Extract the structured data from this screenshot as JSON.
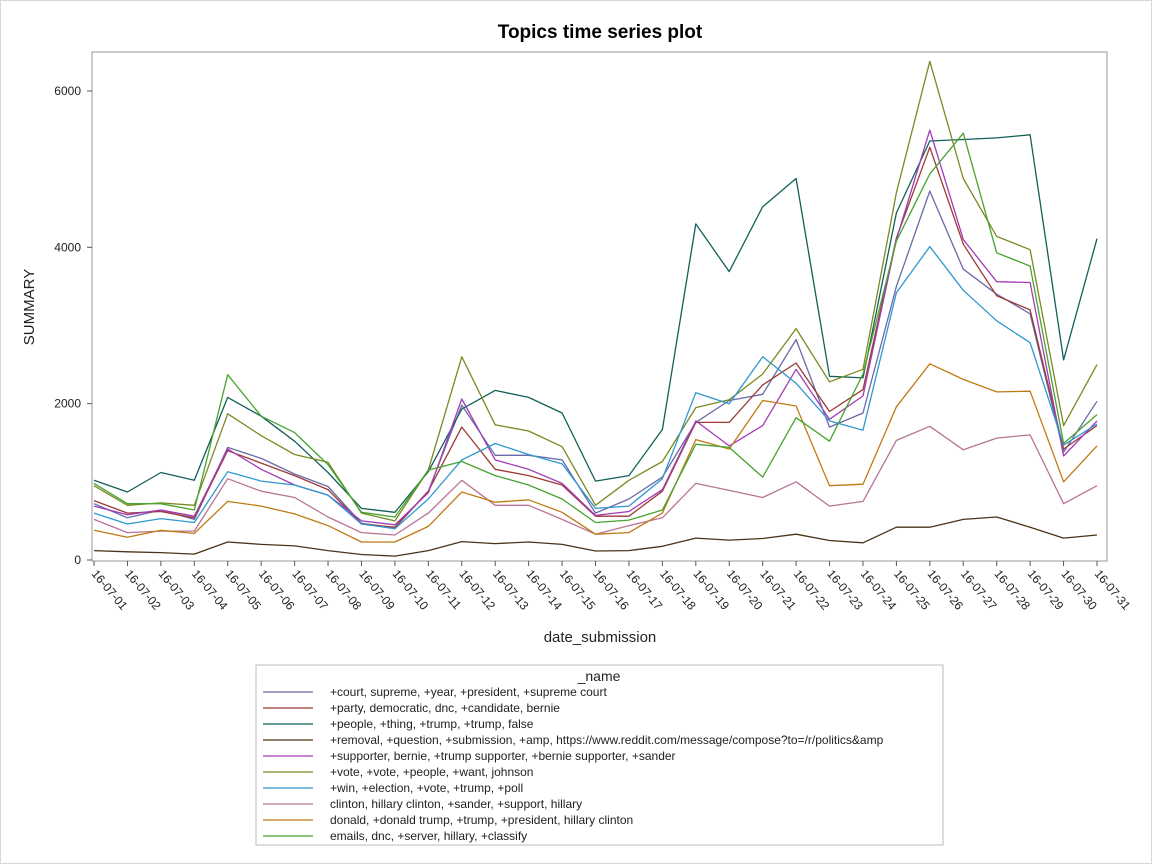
{
  "chart_data": {
    "type": "line",
    "title": "Topics time series plot",
    "xlabel": "date_submission",
    "ylabel": "SUMMARY",
    "ylim": [
      0,
      6500
    ],
    "yticks": [
      0,
      2000,
      4000,
      6000
    ],
    "grid": false,
    "legend_title": "_name",
    "legend_position": "bottom",
    "categories": [
      "16-07-01",
      "16-07-02",
      "16-07-03",
      "16-07-04",
      "16-07-05",
      "16-07-06",
      "16-07-07",
      "16-07-08",
      "16-07-09",
      "16-07-10",
      "16-07-11",
      "16-07-12",
      "16-07-13",
      "16-07-14",
      "16-07-15",
      "16-07-16",
      "16-07-17",
      "16-07-18",
      "16-07-19",
      "16-07-20",
      "16-07-21",
      "16-07-22",
      "16-07-23",
      "16-07-24",
      "16-07-25",
      "16-07-26",
      "16-07-27",
      "16-07-28",
      "16-07-29",
      "16-07-30",
      "16-07-31"
    ],
    "series": [
      {
        "name": "+court, supreme, +year, +president, +supreme court",
        "color": "#6a6aa8",
        "values": [
          720,
          540,
          640,
          520,
          1440,
          1300,
          1100,
          940,
          470,
          410,
          880,
          1980,
          1340,
          1340,
          1280,
          600,
          780,
          1060,
          1760,
          2040,
          2120,
          2820,
          1700,
          1880,
          3500,
          4720,
          3720,
          3400,
          3150,
          1380,
          2030
        ]
      },
      {
        "name": "+party, democratic, dnc, +candidate, bernie",
        "color": "#9c3a34",
        "values": [
          760,
          600,
          620,
          540,
          1400,
          1240,
          1080,
          900,
          460,
          420,
          880,
          1700,
          1160,
          1080,
          960,
          560,
          560,
          880,
          1760,
          1760,
          2240,
          2520,
          1900,
          2180,
          4120,
          5280,
          4040,
          3380,
          3200,
          1420,
          1720
        ]
      },
      {
        "name": "+people, +thing, +trump, +trump, false",
        "color": "#12605a",
        "values": [
          1020,
          870,
          1120,
          1020,
          2080,
          1840,
          1520,
          1120,
          660,
          610,
          1130,
          1930,
          2170,
          2080,
          1880,
          1010,
          1080,
          1670,
          4300,
          3690,
          4520,
          4880,
          2350,
          2330,
          4440,
          5360,
          5380,
          5400,
          5440,
          2560,
          4110
        ]
      },
      {
        "name": "+removal, +question, +submission, +amp, https://www.reddit.com/message/compose?to=/r/politics&amp",
        "color": "#4a3318",
        "values": [
          120,
          105,
          95,
          75,
          230,
          200,
          180,
          120,
          70,
          50,
          120,
          235,
          210,
          230,
          200,
          115,
          120,
          175,
          280,
          255,
          275,
          330,
          250,
          220,
          420,
          420,
          520,
          550,
          420,
          280,
          320
        ]
      },
      {
        "name": "+supporter, bernie, +trump supporter, +bernie supporter, +sander",
        "color": "#a23cb6",
        "values": [
          690,
          580,
          640,
          560,
          1420,
          1160,
          960,
          830,
          500,
          450,
          860,
          2060,
          1280,
          1160,
          980,
          570,
          620,
          900,
          1780,
          1460,
          1720,
          2440,
          1800,
          2100,
          4100,
          5500,
          4100,
          3560,
          3550,
          1330,
          1780
        ]
      },
      {
        "name": "+vote, +vote, +people, +want, johnson",
        "color": "#7a8a22",
        "values": [
          950,
          700,
          730,
          700,
          1870,
          1590,
          1350,
          1250,
          600,
          500,
          1150,
          2600,
          1730,
          1650,
          1450,
          700,
          1020,
          1260,
          1950,
          2050,
          2380,
          2960,
          2280,
          2440,
          4700,
          6380,
          4880,
          4140,
          3970,
          1720,
          2500
        ]
      },
      {
        "name": "+win, +election, +vote, +trump, +poll",
        "color": "#2f98cf",
        "values": [
          600,
          460,
          530,
          480,
          1130,
          1010,
          960,
          830,
          460,
          400,
          780,
          1280,
          1490,
          1350,
          1230,
          660,
          690,
          1040,
          2140,
          2000,
          2600,
          2260,
          1780,
          1660,
          3420,
          4010,
          3450,
          3060,
          2780,
          1470,
          1740
        ]
      },
      {
        "name": "clinton, hillary clinton, +sander, +support, hillary",
        "color": "#b87497",
        "values": [
          520,
          350,
          370,
          370,
          1040,
          880,
          800,
          550,
          350,
          320,
          600,
          1020,
          700,
          700,
          520,
          330,
          440,
          540,
          980,
          890,
          800,
          1000,
          690,
          750,
          1530,
          1710,
          1410,
          1560,
          1600,
          720,
          950
        ]
      },
      {
        "name": "donald, +donald trump, +trump, +president, hillary clinton",
        "color": "#c07a14",
        "values": [
          380,
          290,
          380,
          340,
          750,
          690,
          590,
          440,
          230,
          230,
          430,
          870,
          740,
          770,
          610,
          330,
          350,
          600,
          1540,
          1420,
          2040,
          1970,
          950,
          970,
          1960,
          2510,
          2310,
          2150,
          2160,
          1000,
          1460
        ]
      },
      {
        "name": "emails, dnc, +server, hillary, +classify",
        "color": "#47a42e",
        "values": [
          980,
          720,
          720,
          640,
          2370,
          1840,
          1630,
          1220,
          610,
          550,
          1150,
          1260,
          1080,
          960,
          780,
          480,
          510,
          640,
          1480,
          1440,
          1060,
          1820,
          1520,
          2380,
          4080,
          4940,
          5460,
          3930,
          3760,
          1490,
          1860
        ]
      }
    ]
  }
}
